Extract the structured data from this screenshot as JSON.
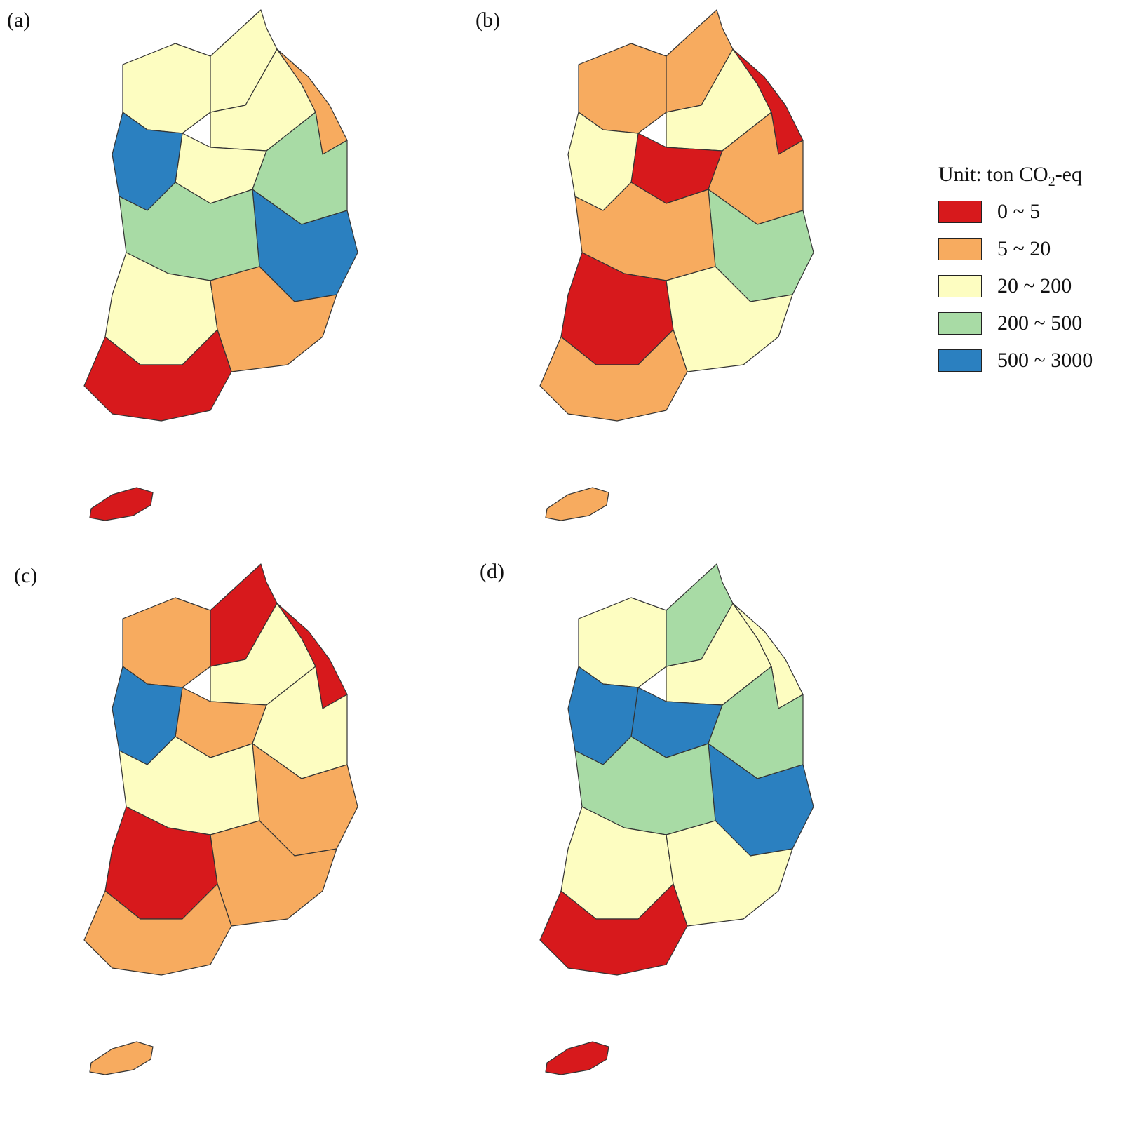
{
  "panels": [
    {
      "label": "(a)",
      "colors": [
        "#fdfdc1",
        "#fdfdc1",
        "#fdfdc1",
        "#f7ab5f",
        "#fdfdc1",
        "#a8dba5",
        "#2b80c0",
        "#2b80c0",
        "#a8dba5",
        "#fdfdc1",
        "#f7ab5f",
        "#d7191c"
      ]
    },
    {
      "label": "(b)",
      "colors": [
        "#f7ab5f",
        "#f7ab5f",
        "#fdfdc1",
        "#d7191c",
        "#d7191c",
        "#f7ab5f",
        "#fdfdc1",
        "#a8dba5",
        "#f7ab5f",
        "#d7191c",
        "#fdfdc1",
        "#f7ab5f"
      ]
    },
    {
      "label": "(c)",
      "colors": [
        "#f7ab5f",
        "#d7191c",
        "#fdfdc1",
        "#d7191c",
        "#f7ab5f",
        "#fdfdc1",
        "#2b80c0",
        "#f7ab5f",
        "#fdfdc1",
        "#d7191c",
        "#f7ab5f",
        "#f7ab5f"
      ]
    },
    {
      "label": "(d)",
      "colors": [
        "#fdfdc1",
        "#a8dba5",
        "#fdfdc1",
        "#fdfdc1",
        "#2b80c0",
        "#a8dba5",
        "#2b80c0",
        "#2b80c0",
        "#a8dba5",
        "#fdfdc1",
        "#fdfdc1",
        "#d7191c"
      ]
    }
  ],
  "legend": {
    "title_prefix": "Unit: ton CO",
    "title_sub": "2",
    "title_suffix": "-eq",
    "items": [
      {
        "label": "0 ~ 5",
        "color": "#d7191c"
      },
      {
        "label": "5 ~ 20",
        "color": "#f7ab5f"
      },
      {
        "label": "20 ~ 200",
        "color": "#fdfdc1"
      },
      {
        "label": "200 ~ 500",
        "color": "#a8dba5"
      },
      {
        "label": "500 ~ 3000",
        "color": "#2b80c0"
      }
    ]
  }
}
